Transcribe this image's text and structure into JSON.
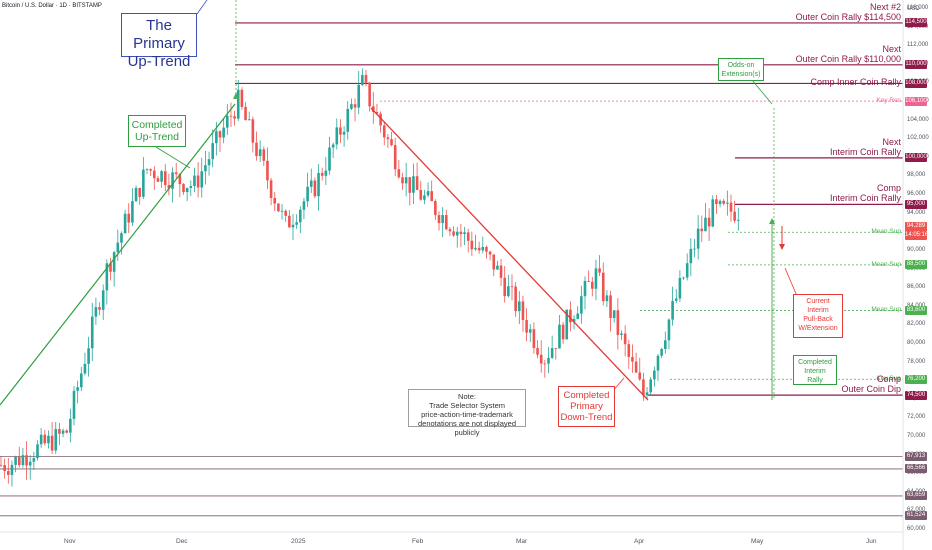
{
  "header": {
    "title": "Bitcoin / U.S. Dollar · 1D · BITSTAMP"
  },
  "axis": {
    "currency": "USD",
    "y_ticks": [
      "116,000",
      "114,000",
      "112,000",
      "110,000",
      "108,000",
      "106,000",
      "104,000",
      "102,000",
      "100,000",
      "98,000",
      "96,000",
      "94,000",
      "92,000",
      "90,000",
      "88,000",
      "86,000",
      "84,000",
      "82,000",
      "80,000",
      "78,000",
      "76,000",
      "74,000",
      "72,000",
      "70,000",
      "68,000",
      "66,000",
      "64,000",
      "62,000",
      "60,000"
    ],
    "x_ticks": [
      "Nov",
      "Dec",
      "2025",
      "Feb",
      "Mar",
      "Apr",
      "May",
      "Jun"
    ]
  },
  "levels": [
    {
      "label": "Next #2\nOuter Coin Rally $114,500",
      "tag": "114,500",
      "value": 114500,
      "color": "#8e1b4a"
    },
    {
      "label": "Next\nOuter Coin Rally $110,000",
      "tag": "110,000",
      "value": 110000,
      "color": "#8e1b4a"
    },
    {
      "label": "Comp Inner Coin Rally",
      "tag": "108,000",
      "value": 108000,
      "color": "#8e1b4a"
    },
    {
      "label": "Key Res",
      "tag": "106,100",
      "value": 106100,
      "color": "#f06292"
    },
    {
      "label": "Next\nInterim Coin Rally",
      "tag": "100,000",
      "value": 100000,
      "color": "#8e1b4a"
    },
    {
      "label": "Comp\nInterim Coin Rally",
      "tag": "95,000",
      "value": 95000,
      "color": "#8e1b4a"
    },
    {
      "label": "Mean Sup",
      "tag": "92,000",
      "value": 92000,
      "color": "#4caf50"
    },
    {
      "label": "Mean Sup",
      "tag": "88,500",
      "value": 88500,
      "color": "#4caf50"
    },
    {
      "label": "Mean Sup",
      "tag": "83,600",
      "value": 83600,
      "color": "#4caf50"
    },
    {
      "label": "Key Sup",
      "tag": "76,200",
      "value": 76200,
      "color": "#4caf50"
    },
    {
      "label": "Comp\nOuter Coin Dip",
      "tag": "74,500",
      "value": 74500,
      "color": "#8e1b4a"
    },
    {
      "label": "",
      "tag": "67,913",
      "value": 67913,
      "color": "#7a5c6e"
    },
    {
      "label": "",
      "tag": "66,566",
      "value": 66566,
      "color": "#7a5c6e"
    },
    {
      "label": "",
      "tag": "63,659",
      "value": 63659,
      "color": "#7a5c6e"
    },
    {
      "label": "",
      "tag": "61,524",
      "value": 61524,
      "color": "#7a5c6e"
    }
  ],
  "price_tags": {
    "current": "94,289",
    "timer": "14:05:16"
  },
  "annotations": {
    "primary_uptrend": "The Primary\nUp-Trend",
    "completed_uptrend": "Completed\nUp-Trend",
    "odds_on": "Odds-on\nExtension(s)",
    "completed_downtrend": "Completed\nPrimary\nDown-Trend",
    "current_pullback": "Current\nInterim\nPull-Back\nW/Extension",
    "completed_interim": "Completed\nInterim\nRally",
    "note": "Note:\nTrade Selector System\nprice-action-time-trademark\ndenotations are not displayed publicly"
  },
  "colors": {
    "up": "#26a69a",
    "down": "#ef5350",
    "purple": "#8e1b4a",
    "green": "#4caf50",
    "red": "#e53935"
  },
  "chart_data": {
    "type": "candlestick",
    "title": "Bitcoin / U.S. Dollar · 1D · BITSTAMP",
    "ylabel": "USD",
    "ylim": [
      60000,
      117000
    ],
    "x_ticks": [
      "Nov",
      "Dec",
      "2025",
      "Feb",
      "Mar",
      "Apr",
      "May",
      "Jun"
    ],
    "close_path_approx": [
      {
        "date": "2024-10-15",
        "close": 67000
      },
      {
        "date": "2024-10-31",
        "close": 70500
      },
      {
        "date": "2024-11-11",
        "close": 88000
      },
      {
        "date": "2024-11-22",
        "close": 98800
      },
      {
        "date": "2024-12-05",
        "close": 97000
      },
      {
        "date": "2024-12-17",
        "close": 106100
      },
      {
        "date": "2024-12-30",
        "close": 92700
      },
      {
        "date": "2025-01-07",
        "close": 96900
      },
      {
        "date": "2025-01-20",
        "close": 108000
      },
      {
        "date": "2025-02-01",
        "close": 97500
      },
      {
        "date": "2025-02-25",
        "close": 88600
      },
      {
        "date": "2025-03-11",
        "close": 78500
      },
      {
        "date": "2025-03-25",
        "close": 87500
      },
      {
        "date": "2025-04-07",
        "close": 74500
      },
      {
        "date": "2025-04-22",
        "close": 91700
      },
      {
        "date": "2025-04-26",
        "close": 94289
      }
    ]
  }
}
